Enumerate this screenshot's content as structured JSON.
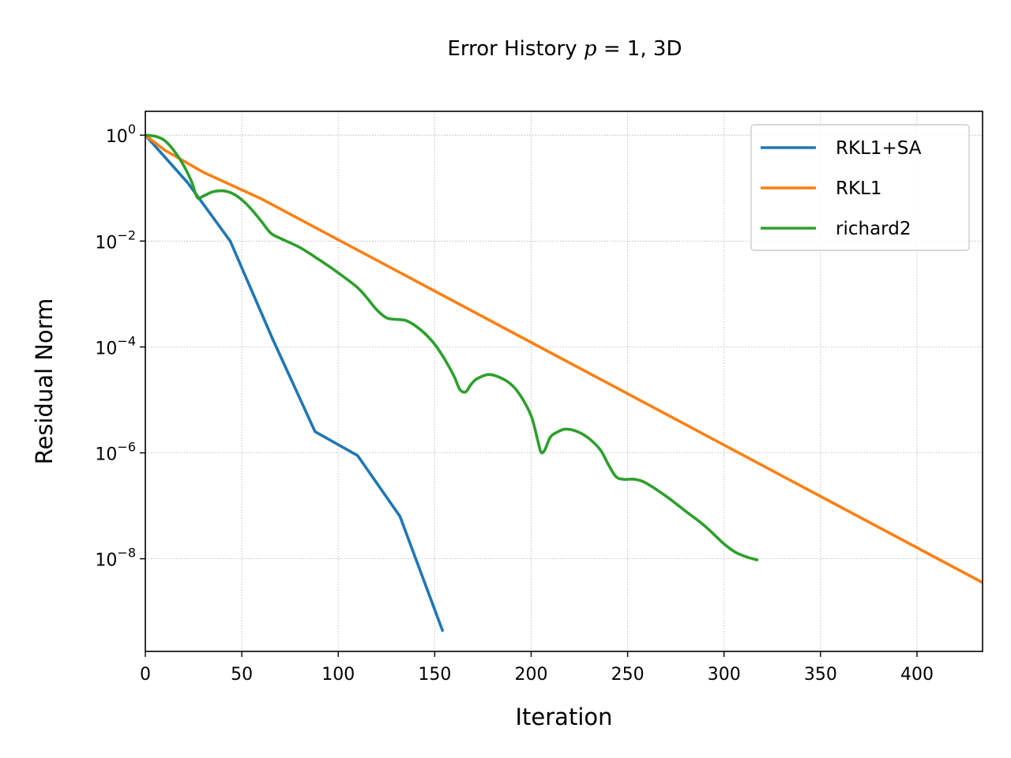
{
  "chart_data": {
    "type": "line",
    "title": {
      "text": "Error History",
      "var": "p",
      "eq": "= 1",
      "suffix": ", 3D"
    },
    "xlabel": "Iteration",
    "ylabel": "Residual Norm",
    "xlim": [
      0,
      434
    ],
    "ylim_log10": [
      -9.75,
      0.45
    ],
    "y_scale": "log",
    "grid": "dotted",
    "legend_position": "top-right",
    "x_ticks": [
      "0",
      "50",
      "100",
      "150",
      "200",
      "250",
      "300",
      "350",
      "400"
    ],
    "x_tick_values": [
      0,
      50,
      100,
      150,
      200,
      250,
      300,
      350,
      400
    ],
    "y_ticks": [
      {
        "exp": 0,
        "base": "10",
        "power": "0"
      },
      {
        "exp": -2,
        "base": "10",
        "power": "−2"
      },
      {
        "exp": -4,
        "base": "10",
        "power": "−4"
      },
      {
        "exp": -6,
        "base": "10",
        "power": "−6"
      },
      {
        "exp": -8,
        "base": "10",
        "power": "−8"
      }
    ],
    "series": [
      {
        "name": "RKL1+SA",
        "color": "#1f77b4",
        "points_log10": [
          [
            0,
            0
          ],
          [
            22,
            -0.9
          ],
          [
            44,
            -2.0
          ],
          [
            66,
            -3.85
          ],
          [
            88,
            -5.6
          ],
          [
            110,
            -6.05
          ],
          [
            132,
            -7.2
          ],
          [
            154,
            -9.35
          ]
        ]
      },
      {
        "name": "RKL1",
        "color": "#ff7f0e",
        "points_log10": [
          [
            0,
            0
          ],
          [
            10,
            -0.28
          ],
          [
            30,
            -0.7
          ],
          [
            60,
            -1.2
          ],
          [
            434,
            -8.45
          ]
        ]
      },
      {
        "name": "richard2",
        "color": "#2ca02c",
        "points_log10": [
          [
            0,
            0
          ],
          [
            5,
            -0.02
          ],
          [
            10,
            -0.1
          ],
          [
            15,
            -0.3
          ],
          [
            20,
            -0.58
          ],
          [
            24,
            -0.88
          ],
          [
            27,
            -1.18
          ],
          [
            30,
            -1.15
          ],
          [
            35,
            -1.07
          ],
          [
            40,
            -1.05
          ],
          [
            45,
            -1.1
          ],
          [
            50,
            -1.22
          ],
          [
            55,
            -1.4
          ],
          [
            60,
            -1.62
          ],
          [
            65,
            -1.85
          ],
          [
            70,
            -1.95
          ],
          [
            80,
            -2.12
          ],
          [
            90,
            -2.35
          ],
          [
            100,
            -2.6
          ],
          [
            110,
            -2.88
          ],
          [
            115,
            -3.08
          ],
          [
            120,
            -3.3
          ],
          [
            125,
            -3.45
          ],
          [
            130,
            -3.48
          ],
          [
            135,
            -3.5
          ],
          [
            140,
            -3.6
          ],
          [
            145,
            -3.75
          ],
          [
            150,
            -3.95
          ],
          [
            155,
            -4.22
          ],
          [
            160,
            -4.55
          ],
          [
            163,
            -4.8
          ],
          [
            166,
            -4.85
          ],
          [
            169,
            -4.7
          ],
          [
            172,
            -4.6
          ],
          [
            178,
            -4.52
          ],
          [
            184,
            -4.58
          ],
          [
            190,
            -4.72
          ],
          [
            195,
            -4.95
          ],
          [
            200,
            -5.3
          ],
          [
            203,
            -5.7
          ],
          [
            205,
            -5.98
          ],
          [
            207,
            -5.95
          ],
          [
            210,
            -5.7
          ],
          [
            214,
            -5.6
          ],
          [
            218,
            -5.55
          ],
          [
            224,
            -5.6
          ],
          [
            230,
            -5.73
          ],
          [
            236,
            -5.95
          ],
          [
            240,
            -6.22
          ],
          [
            244,
            -6.45
          ],
          [
            248,
            -6.5
          ],
          [
            254,
            -6.5
          ],
          [
            260,
            -6.58
          ],
          [
            270,
            -6.82
          ],
          [
            280,
            -7.1
          ],
          [
            290,
            -7.38
          ],
          [
            300,
            -7.72
          ],
          [
            306,
            -7.88
          ],
          [
            312,
            -7.97
          ],
          [
            317,
            -8.02
          ]
        ]
      }
    ]
  }
}
